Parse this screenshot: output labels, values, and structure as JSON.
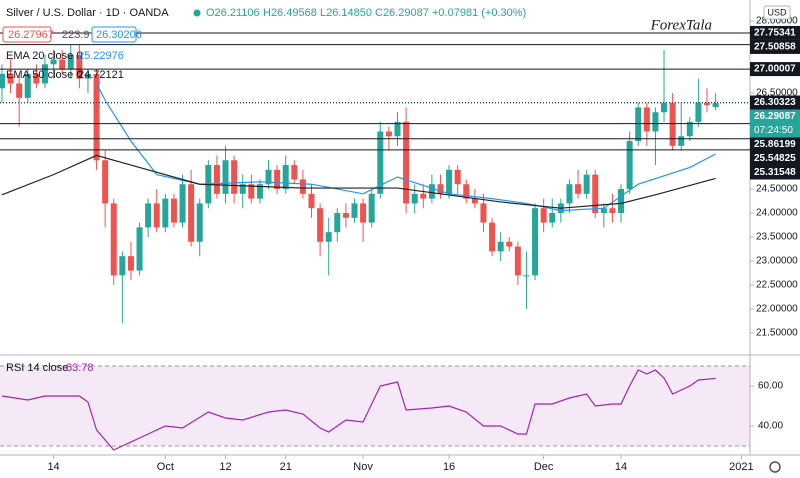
{
  "chart_data": [
    {
      "type": "candlestick",
      "title": "Silver / U.S. Dollar · 1D · OANDA",
      "legend": {
        "open": "O26.21106",
        "high": "H26.49568",
        "low": "L26.14850",
        "close": "C26.29087",
        "change": "+0.07981 (+0.30%)"
      },
      "bid": "26.27967",
      "spread": "223.9",
      "ask": "26.30206",
      "logo": "ForexTala",
      "axis_unit": "USD",
      "countdown": "07:24:50",
      "up_color": "#26a69a",
      "down_color": "#ef5350",
      "xlim": [
        -0.23,
        87
      ],
      "xticks": [
        {
          "value": 6,
          "label": "14"
        },
        {
          "value": 19,
          "label": "Oct"
        },
        {
          "value": 26,
          "label": "12"
        },
        {
          "value": 33,
          "label": "21"
        },
        {
          "value": 42,
          "label": "Nov"
        },
        {
          "value": 52,
          "label": "16"
        },
        {
          "value": 63,
          "label": "Dec"
        },
        {
          "value": 72,
          "label": "14"
        },
        {
          "value": 86,
          "label": "2021"
        }
      ],
      "ylim": [
        21.04,
        28.44
      ],
      "yticks": [
        {
          "value": 21.5,
          "label": "21.50000"
        },
        {
          "value": 22,
          "label": "22.00000"
        },
        {
          "value": 22.5,
          "label": "22.50000"
        },
        {
          "value": 23,
          "label": "23.00000"
        },
        {
          "value": 23.5,
          "label": "23.50000"
        },
        {
          "value": 24,
          "label": "24.00000"
        },
        {
          "value": 24.5,
          "label": "24.50000"
        },
        {
          "value": 26.5,
          "label": "26.50000"
        },
        {
          "value": 28,
          "label": "28.00000"
        }
      ],
      "grid": false,
      "levels": [
        27.75341,
        27.50858,
        27.00007,
        26.30323,
        25.86199,
        25.54825,
        25.31548
      ],
      "last_price": 26.29087,
      "x": [
        0,
        1,
        2,
        3,
        4,
        5,
        6,
        7,
        8,
        9,
        10,
        11,
        12,
        13,
        14,
        15,
        16,
        17,
        18,
        19,
        20,
        21,
        22,
        23,
        24,
        25,
        26,
        27,
        28,
        29,
        30,
        31,
        32,
        33,
        34,
        35,
        36,
        37,
        38,
        39,
        40,
        41,
        42,
        43,
        44,
        45,
        46,
        47,
        48,
        49,
        50,
        51,
        52,
        53,
        54,
        55,
        56,
        57,
        58,
        59,
        60,
        61,
        62,
        63,
        64,
        65,
        66,
        67,
        68,
        69,
        70,
        71,
        72,
        73,
        74,
        75,
        76,
        77,
        78,
        79,
        80,
        81,
        82,
        83
      ],
      "ohlc": [
        [
          26.6,
          27.1,
          26.3,
          26.9
        ],
        [
          26.9,
          27.2,
          26.5,
          26.7
        ],
        [
          26.7,
          26.9,
          25.8,
          26.4
        ],
        [
          26.4,
          27.0,
          26.3,
          26.9
        ],
        [
          26.9,
          27.1,
          26.6,
          26.7
        ],
        [
          26.7,
          27.3,
          26.6,
          27.1
        ],
        [
          27.1,
          27.4,
          26.8,
          27.2
        ],
        [
          27.2,
          27.4,
          26.9,
          27.0
        ],
        [
          27.0,
          27.5,
          26.8,
          27.3
        ],
        [
          27.3,
          27.5,
          26.6,
          26.8
        ],
        [
          26.8,
          27.0,
          26.5,
          26.9
        ],
        [
          26.9,
          27.0,
          24.9,
          25.1
        ],
        [
          25.1,
          25.3,
          23.7,
          24.2
        ],
        [
          24.2,
          24.3,
          22.5,
          22.7
        ],
        [
          22.7,
          23.2,
          21.7,
          23.1
        ],
        [
          23.1,
          23.4,
          22.6,
          22.8
        ],
        [
          22.8,
          23.8,
          22.7,
          23.7
        ],
        [
          23.7,
          24.3,
          23.5,
          24.2
        ],
        [
          24.2,
          24.5,
          23.6,
          23.7
        ],
        [
          23.7,
          24.4,
          23.6,
          24.3
        ],
        [
          24.3,
          24.4,
          23.7,
          23.8
        ],
        [
          23.8,
          24.8,
          23.7,
          24.6
        ],
        [
          24.6,
          24.9,
          23.3,
          23.4
        ],
        [
          23.4,
          24.3,
          23.1,
          24.2
        ],
        [
          24.2,
          25.1,
          24.1,
          25.0
        ],
        [
          25.0,
          25.2,
          24.3,
          24.4
        ],
        [
          24.4,
          25.4,
          24.2,
          25.1
        ],
        [
          25.1,
          25.2,
          24.2,
          24.4
        ],
        [
          24.4,
          24.8,
          24.1,
          24.6
        ],
        [
          24.6,
          24.8,
          24.2,
          24.3
        ],
        [
          24.3,
          24.7,
          24.2,
          24.6
        ],
        [
          24.6,
          25.1,
          24.5,
          24.9
        ],
        [
          24.9,
          25.0,
          24.4,
          24.5
        ],
        [
          24.5,
          25.2,
          24.4,
          25.0
        ],
        [
          25.0,
          25.1,
          24.6,
          24.7
        ],
        [
          24.7,
          24.9,
          24.3,
          24.4
        ],
        [
          24.4,
          24.6,
          23.9,
          24.1
        ],
        [
          24.1,
          24.2,
          23.1,
          23.4
        ],
        [
          23.4,
          23.9,
          22.7,
          23.6
        ],
        [
          23.6,
          24.1,
          23.4,
          24.0
        ],
        [
          24.0,
          24.2,
          23.7,
          23.9
        ],
        [
          23.9,
          24.3,
          23.8,
          24.2
        ],
        [
          24.2,
          24.3,
          23.4,
          23.8
        ],
        [
          23.8,
          24.5,
          23.7,
          24.4
        ],
        [
          24.4,
          25.9,
          24.3,
          25.7
        ],
        [
          25.7,
          25.8,
          25.3,
          25.6
        ],
        [
          25.6,
          26.1,
          25.4,
          25.9
        ],
        [
          25.9,
          26.2,
          24.0,
          24.2
        ],
        [
          24.2,
          24.6,
          24.0,
          24.4
        ],
        [
          24.4,
          24.6,
          24.1,
          24.3
        ],
        [
          24.3,
          24.8,
          24.2,
          24.6
        ],
        [
          24.6,
          24.8,
          24.3,
          24.4
        ],
        [
          24.4,
          25.0,
          24.3,
          24.9
        ],
        [
          24.9,
          25.0,
          24.4,
          24.6
        ],
        [
          24.6,
          24.7,
          24.2,
          24.3
        ],
        [
          24.3,
          24.5,
          24.1,
          24.2
        ],
        [
          24.2,
          24.4,
          23.6,
          23.8
        ],
        [
          23.8,
          23.9,
          23.1,
          23.2
        ],
        [
          23.2,
          23.6,
          23.0,
          23.4
        ],
        [
          23.4,
          23.5,
          23.2,
          23.3
        ],
        [
          23.3,
          23.4,
          22.5,
          22.7
        ],
        [
          22.7,
          23.2,
          22.0,
          22.7
        ],
        [
          22.7,
          24.2,
          22.6,
          24.1
        ],
        [
          24.1,
          24.3,
          23.6,
          23.8
        ],
        [
          23.8,
          24.3,
          23.7,
          24.0
        ],
        [
          24.0,
          24.3,
          23.8,
          24.2
        ],
        [
          24.2,
          24.7,
          24.0,
          24.6
        ],
        [
          24.6,
          24.9,
          24.3,
          24.4
        ],
        [
          24.4,
          24.9,
          24.3,
          24.8
        ],
        [
          24.8,
          24.9,
          23.9,
          24.0
        ],
        [
          24.0,
          24.2,
          23.7,
          24.1
        ],
        [
          24.1,
          24.4,
          23.8,
          24.0
        ],
        [
          24.0,
          24.6,
          23.8,
          24.5
        ],
        [
          24.5,
          25.7,
          24.4,
          25.5
        ],
        [
          25.5,
          26.3,
          25.4,
          26.2
        ],
        [
          26.2,
          26.3,
          25.4,
          25.7
        ],
        [
          25.7,
          26.2,
          25.0,
          26.1
        ],
        [
          26.1,
          27.4,
          25.9,
          26.3
        ],
        [
          26.3,
          26.5,
          25.3,
          25.4
        ],
        [
          25.4,
          26.3,
          25.3,
          25.6
        ],
        [
          25.6,
          26.0,
          25.5,
          25.9
        ],
        [
          25.9,
          26.8,
          25.8,
          26.3
        ],
        [
          26.3,
          26.6,
          26.1,
          26.25
        ],
        [
          26.21106,
          26.49568,
          26.1485,
          26.29087
        ]
      ],
      "overlays": [
        {
          "name": "EMA 20 close 0",
          "color": "#2196f3",
          "x": [
            11,
            12,
            15,
            18,
            23,
            30,
            36,
            42,
            46,
            52,
            57,
            61,
            65,
            70,
            74,
            80,
            83
          ],
          "values": [
            26.7,
            26.35,
            25.5,
            24.8,
            24.6,
            24.65,
            24.6,
            24.4,
            24.75,
            24.4,
            24.3,
            24.2,
            24.05,
            24.1,
            24.6,
            24.95,
            25.22976
          ]
        },
        {
          "name": "EMA 50 close 0",
          "color": "#222222",
          "x": [
            0,
            6,
            11,
            15,
            23,
            35,
            46,
            58,
            65,
            72,
            76,
            83
          ],
          "values": [
            24.38,
            24.8,
            25.2,
            25.0,
            24.6,
            24.52,
            24.52,
            24.23,
            24.1,
            24.2,
            24.38,
            24.72121
          ]
        }
      ]
    },
    {
      "type": "line",
      "title": "RSI 14 close",
      "color": "#9c27b0",
      "xlim": [
        -0.23,
        87
      ],
      "ylim": [
        29.5,
        70.5
      ],
      "yticks": [
        {
          "value": 40,
          "label": "40.00"
        },
        {
          "value": 60,
          "label": "60.00"
        }
      ],
      "bands": [
        30,
        70
      ],
      "x": [
        0,
        3,
        5,
        9,
        10,
        11,
        13,
        14,
        16,
        19,
        21,
        24,
        26,
        28,
        31,
        33,
        35,
        37,
        38,
        40,
        42,
        44,
        46,
        47,
        50,
        52,
        54,
        56,
        58,
        60,
        61,
        62,
        64,
        66,
        68,
        69,
        71,
        72,
        73,
        74,
        75,
        76,
        77,
        78,
        80,
        81,
        83
      ],
      "values": [
        55,
        53,
        55,
        55,
        52,
        38,
        28,
        30,
        34,
        40,
        39,
        47,
        44,
        43,
        47,
        48,
        46,
        39,
        37,
        43,
        42,
        60,
        62,
        48,
        49,
        50,
        47,
        40,
        40,
        36,
        36,
        51,
        51,
        54,
        56,
        50,
        51,
        51,
        60,
        68,
        66,
        68,
        64,
        56,
        60,
        63,
        63.78
      ]
    }
  ]
}
